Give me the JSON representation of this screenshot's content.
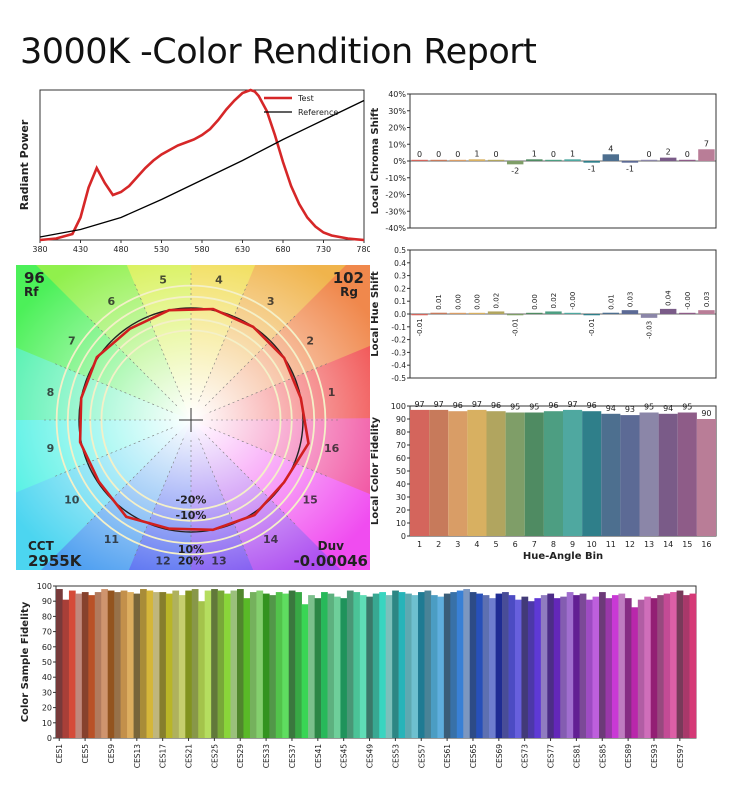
{
  "page_title": "3000K -Color Rendition Report",
  "chart_data": [
    {
      "type": "line",
      "id": "spd",
      "ylabel": "Radiant Power",
      "xlabel": "",
      "x_ticks": [
        380,
        430,
        480,
        530,
        580,
        630,
        680,
        730,
        780
      ],
      "xlim": [
        380,
        780
      ],
      "ylim": [
        0,
        1
      ],
      "series": [
        {
          "name": "Test",
          "color": "#d62728",
          "x": [
            380,
            400,
            420,
            430,
            440,
            450,
            460,
            470,
            480,
            490,
            500,
            510,
            520,
            530,
            540,
            550,
            560,
            570,
            580,
            590,
            600,
            610,
            620,
            630,
            640,
            645,
            650,
            660,
            670,
            680,
            690,
            700,
            710,
            720,
            730,
            740,
            750,
            760,
            770,
            780
          ],
          "y": [
            0,
            0.01,
            0.04,
            0.15,
            0.35,
            0.48,
            0.38,
            0.3,
            0.32,
            0.36,
            0.42,
            0.48,
            0.53,
            0.57,
            0.6,
            0.63,
            0.65,
            0.67,
            0.7,
            0.74,
            0.8,
            0.87,
            0.93,
            0.98,
            1.0,
            0.99,
            0.96,
            0.86,
            0.7,
            0.52,
            0.36,
            0.24,
            0.15,
            0.09,
            0.05,
            0.03,
            0.02,
            0.01,
            0.005,
            0
          ]
        },
        {
          "name": "Reference",
          "color": "#000000",
          "x": [
            380,
            430,
            480,
            530,
            580,
            630,
            680,
            730,
            780
          ],
          "y": [
            0.02,
            0.07,
            0.15,
            0.27,
            0.4,
            0.53,
            0.67,
            0.8,
            0.93
          ]
        }
      ],
      "legend": "top-right"
    },
    {
      "type": "bar",
      "id": "chroma",
      "ylabel": "Local Chroma Shift",
      "ylim": [
        -40,
        40
      ],
      "y_ticks": [
        "40%",
        "30%",
        "20%",
        "10%",
        "0%",
        "-10%",
        "-20%",
        "-30%",
        "-40%"
      ],
      "categories": [
        "1",
        "2",
        "3",
        "4",
        "5",
        "6",
        "7",
        "8",
        "9",
        "10",
        "11",
        "12",
        "13",
        "14",
        "15",
        "16"
      ],
      "values": [
        0,
        0,
        0,
        1,
        0,
        -2,
        1,
        0,
        1,
        -1,
        4,
        -1,
        0,
        2,
        0,
        7
      ]
    },
    {
      "type": "bar",
      "id": "hue",
      "ylabel": "Local Hue Shift",
      "ylim": [
        -0.5,
        0.5
      ],
      "y_ticks": [
        "0.5",
        "0.4",
        "0.3",
        "0.2",
        "0.1",
        "0.0",
        "-0.1",
        "-0.2",
        "-0.3",
        "-0.4",
        "-0.5"
      ],
      "categories": [
        "1",
        "2",
        "3",
        "4",
        "5",
        "6",
        "7",
        "8",
        "9",
        "10",
        "11",
        "12",
        "13",
        "14",
        "15",
        "16"
      ],
      "values": [
        -0.01,
        0.01,
        0.0,
        0.0,
        0.02,
        -0.01,
        0.0,
        0.02,
        -0.0,
        -0.01,
        0.01,
        0.03,
        -0.03,
        0.04,
        -0.0,
        0.03
      ],
      "labels": [
        "-0.01",
        "0.01",
        "0.00",
        "0.00",
        "0.02",
        "-0.01",
        "0.00",
        "0.02",
        "-0.00",
        "-0.01",
        "0.01",
        "0.03",
        "-0.03",
        "0.04",
        "-0.00",
        "0.03"
      ]
    },
    {
      "type": "bar",
      "id": "fidelity",
      "xlabel": "Hue-Angle Bin",
      "ylabel": "Local Color Fidelity",
      "ylim": [
        0,
        100
      ],
      "y_ticks": [
        "100",
        "90",
        "80",
        "70",
        "60",
        "50",
        "40",
        "30",
        "20",
        "10",
        "0"
      ],
      "categories": [
        "1",
        "2",
        "3",
        "4",
        "5",
        "6",
        "7",
        "8",
        "9",
        "10",
        "11",
        "12",
        "13",
        "14",
        "15",
        "16"
      ],
      "values": [
        97,
        97,
        96,
        97,
        96,
        95,
        95,
        96,
        97,
        96,
        94,
        93,
        95,
        94,
        95,
        90
      ]
    },
    {
      "type": "vector_graphic",
      "id": "cvg",
      "rf_value": "96",
      "rf_label": "Rf",
      "rg_value": "102",
      "rg_label": "Rg",
      "cct_label": "CCT",
      "cct_value": "2955K",
      "duv_label": "Duv",
      "duv_value": "-0.00046",
      "ring_labels": [
        "-20%",
        "-10%",
        "10%",
        "20%"
      ],
      "bin_numbers": [
        "1",
        "2",
        "3",
        "4",
        "5",
        "6",
        "7",
        "8",
        "9",
        "10",
        "11",
        "12",
        "13",
        "14",
        "15",
        "16"
      ]
    },
    {
      "type": "bar",
      "id": "ces",
      "ylabel": "Color Sample Fidelity",
      "ylim": [
        0,
        100
      ],
      "y_ticks": [
        "100",
        "90",
        "80",
        "70",
        "60",
        "50",
        "40",
        "30",
        "20",
        "10",
        "0"
      ],
      "x_tick_labels": [
        "CES1",
        "CES5",
        "CES9",
        "CES13",
        "CES17",
        "CES21",
        "CES25",
        "CES29",
        "CES33",
        "CES37",
        "CES41",
        "CES45",
        "CES49",
        "CES53",
        "CES57",
        "CES61",
        "CES65",
        "CES69",
        "CES73",
        "CES77",
        "CES81",
        "CES85",
        "CES89",
        "CES93",
        "CES97"
      ],
      "count": 99,
      "values": [
        98,
        91,
        97,
        95,
        96,
        94,
        96,
        98,
        97,
        96,
        97,
        96,
        95,
        98,
        97,
        96,
        96,
        95,
        97,
        94,
        97,
        98,
        90,
        97,
        98,
        97,
        95,
        97,
        98,
        92,
        96,
        97,
        95,
        94,
        96,
        95,
        97,
        96,
        88,
        94,
        92,
        96,
        95,
        93,
        92,
        97,
        96,
        94,
        93,
        95,
        96,
        94,
        97,
        96,
        95,
        94,
        96,
        97,
        94,
        93,
        95,
        96,
        97,
        98,
        96,
        95,
        94,
        92,
        95,
        96,
        94,
        91,
        93,
        90,
        92,
        94,
        95,
        92,
        93,
        96,
        94,
        95,
        91,
        93,
        96,
        92,
        94,
        95,
        92,
        86,
        91,
        93,
        92,
        94,
        95,
        96,
        97,
        94,
        95
      ]
    }
  ]
}
